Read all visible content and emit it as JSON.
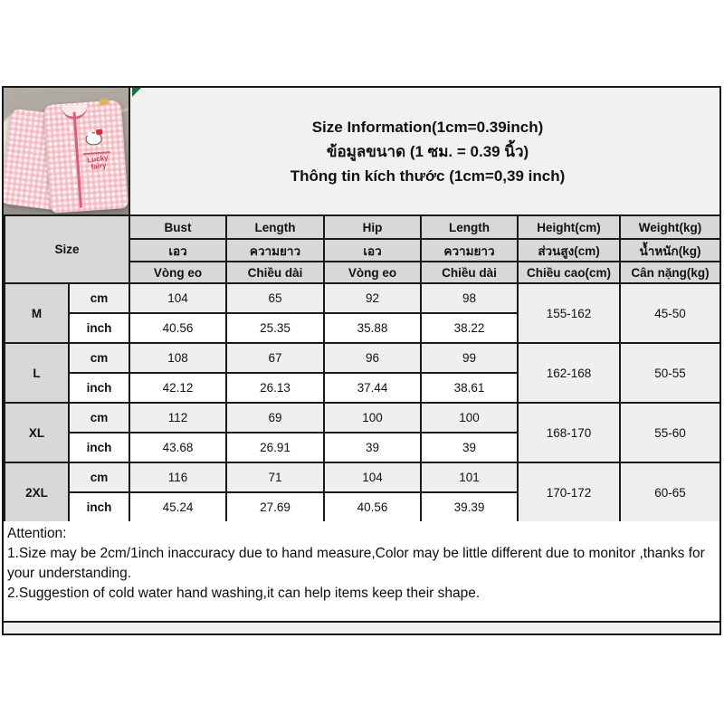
{
  "title": {
    "line1_en": "Size Information(1cm=0.39inch)",
    "line2_th": "ข้อมูลขนาด (1 ซม. = 0.39 นิ้ว)",
    "line3_vi": "Thông tin kích thước (1cm=0,39 inch)"
  },
  "product_photo": {
    "description": "pink gingham pajama set on grey sofa",
    "brand_text": "Lucky fairy",
    "motif": "hello-kitty-face"
  },
  "table": {
    "corner_label": "Size",
    "unit_labels": [
      "cm",
      "inch"
    ],
    "columns": [
      {
        "en": "Bust",
        "th": "เอว",
        "vi": "Vòng eo"
      },
      {
        "en": "Length",
        "th": "ความยาว",
        "vi": "Chiều dài"
      },
      {
        "en": "Hip",
        "th": "เอว",
        "vi": "Vòng eo"
      },
      {
        "en": "Length",
        "th": "ความยาว",
        "vi": "Chiều dài"
      },
      {
        "en": "Height(cm)",
        "th": "ส่วนสูง(cm)",
        "vi": "Chiều cao(cm)"
      },
      {
        "en": "Weight(kg)",
        "th": "น้ำหนัก(kg)",
        "vi": "Cân nặng(kg)"
      }
    ],
    "rows": [
      {
        "size": "M",
        "cm": [
          "104",
          "65",
          "92",
          "98"
        ],
        "inch": [
          "40.56",
          "25.35",
          "35.88",
          "38.22"
        ],
        "height": "155-162",
        "weight": "45-50"
      },
      {
        "size": "L",
        "cm": [
          "108",
          "67",
          "96",
          "99"
        ],
        "inch": [
          "42.12",
          "26.13",
          "37.44",
          "38.61"
        ],
        "height": "162-168",
        "weight": "50-55"
      },
      {
        "size": "XL",
        "cm": [
          "112",
          "69",
          "100",
          "100"
        ],
        "inch": [
          "43.68",
          "26.91",
          "39",
          "39"
        ],
        "height": "168-170",
        "weight": "55-60"
      },
      {
        "size": "2XL",
        "cm": [
          "116",
          "71",
          "104",
          "101"
        ],
        "inch": [
          "45.24",
          "27.69",
          "40.56",
          "39.39"
        ],
        "height": "170-172",
        "weight": "60-65"
      }
    ]
  },
  "attention": {
    "heading": "Attention:",
    "notes": [
      "1.Size may be 2cm/1inch inaccuracy due to hand measure,Color may be little different due to monitor ,thanks for your understanding.",
      "2.Suggestion of cold water hand washing,it can help items keep their shape."
    ]
  },
  "colors": {
    "panel_bg": "#f1f1f1",
    "header_bg": "#d8d8d8",
    "stripe_bg": "#efefef",
    "border": "#1a1a1a",
    "marker_green": "#1e7145",
    "pajama_pink": "#f0aab6",
    "piping_red": "#d8607a"
  }
}
